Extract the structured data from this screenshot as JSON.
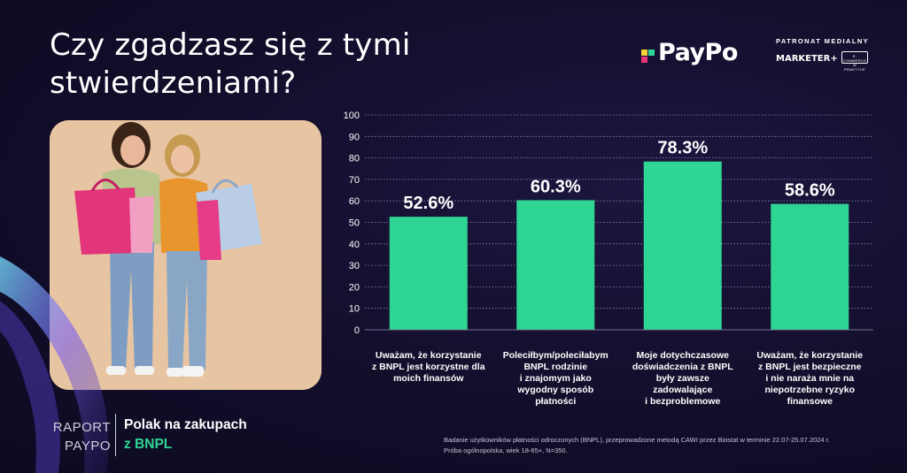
{
  "title": "Czy zgadzasz się z tymi stwierdzeniami?",
  "brand": {
    "name": "PayPo",
    "patronat": "PATRONAT MEDIALNY",
    "partner1": "MARKETER+",
    "partner2": "E-COMMERCE W PRAKTYCE",
    "colors": {
      "accent": "#2fd593",
      "pink": "#e6347a",
      "yellow": "#f6d13a",
      "cyan": "#4fc4e3"
    }
  },
  "report": {
    "label_line1": "RAPORT",
    "label_line2": "PAYPO",
    "subtitle_line1": "Polak na zakupach",
    "subtitle_line2": "z BNPL"
  },
  "footnote": {
    "line1": "Badanie użytkowników płatności odroczonych (BNPL), przeprowadzone metodą CAWI przez Biostat w terminie 22.07-25.07.2024 r.",
    "line2": "Próba ogólnopolska, wiek 18-65+, N=350."
  },
  "chart_data": {
    "type": "bar",
    "categories": [
      [
        "Uważam, że korzystanie",
        "z BNPL jest korzystne dla",
        "moich finansów"
      ],
      [
        "Poleciłbym/poleciłabym",
        "BNPL rodzinie",
        "i znajomym jako",
        "wygodny sposób",
        "płatności"
      ],
      [
        "Moje dotychczasowe",
        "doświadczenia z BNPL",
        "były zawsze",
        "zadowalające",
        "i bezproblemowe"
      ],
      [
        "Uważam, że korzystanie",
        "z BNPL jest bezpieczne",
        "i nie naraża mnie na",
        "niepotrzebne ryzyko",
        "finansowe"
      ]
    ],
    "values": [
      52.6,
      60.3,
      78.3,
      58.6
    ],
    "value_labels": [
      "52.6%",
      "60.3%",
      "78.3%",
      "58.6%"
    ],
    "yticks": [
      "0",
      "10",
      "20",
      "30",
      "40",
      "50",
      "60",
      "70",
      "80",
      "90",
      "100"
    ],
    "ylim": [
      0,
      100
    ],
    "grid": "dotted horizontal",
    "bar_color": "#2fd593"
  }
}
